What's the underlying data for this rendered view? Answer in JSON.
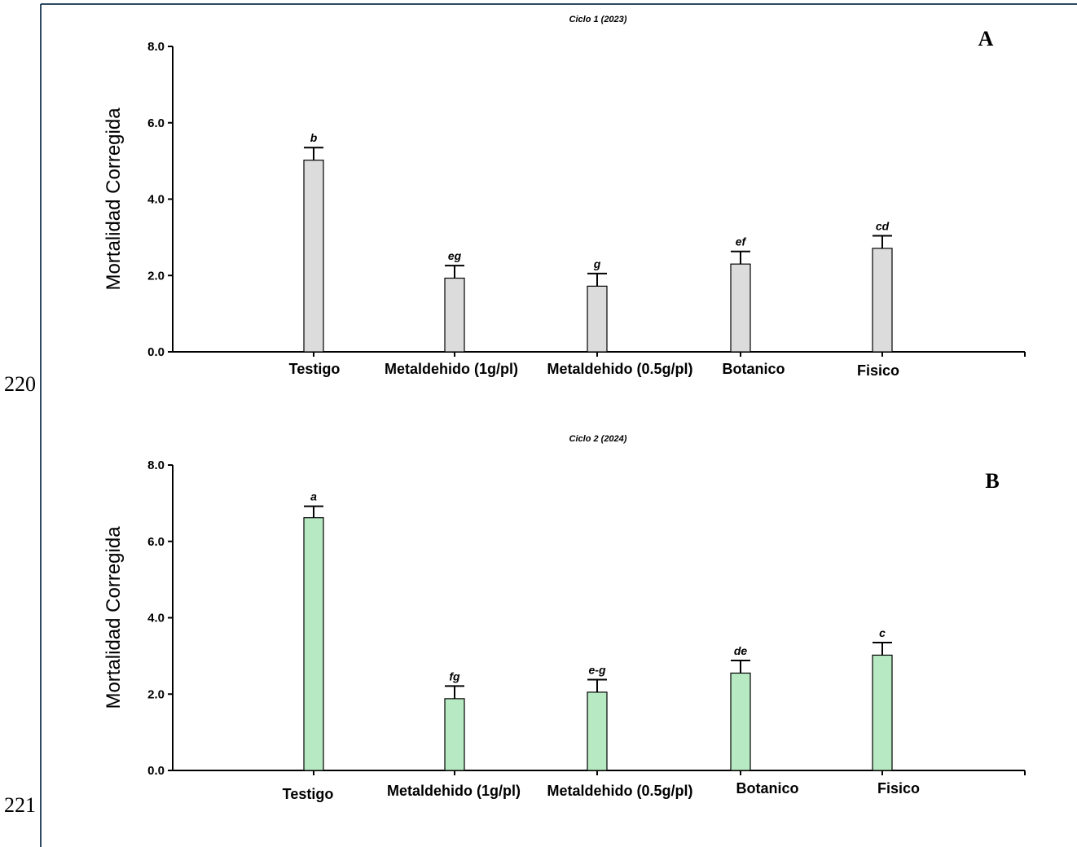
{
  "line_numbers": [
    "220",
    "221"
  ],
  "chart_data": [
    {
      "type": "bar",
      "title": "Ciclo 1 (2023)",
      "panel_label": "A",
      "xlabel": "",
      "ylabel": "Mortalidad Corregida",
      "ylim": [
        0,
        8
      ],
      "yticks": [
        "0.0",
        "2.0",
        "4.0",
        "6.0",
        "8.0"
      ],
      "categories": [
        "Testigo",
        "Metaldehido (1g/pl)",
        "Metaldehido (0.5g/pl)",
        "Botanico",
        "Fisico"
      ],
      "values": [
        5.02,
        1.93,
        1.72,
        2.3,
        2.71
      ],
      "errors": [
        0.33,
        0.33,
        0.33,
        0.33,
        0.33
      ],
      "significance": [
        "b",
        "eg",
        "g",
        "ef",
        "cd"
      ],
      "bar_color": "#dcdcdc",
      "grid": false,
      "legend": "none"
    },
    {
      "type": "bar",
      "title": "Ciclo 2 (2024)",
      "panel_label": "B",
      "xlabel": "",
      "ylabel": "Mortalidad Corregida",
      "ylim": [
        0,
        8
      ],
      "yticks": [
        "0.0",
        "2.0",
        "4.0",
        "6.0",
        "8.0"
      ],
      "categories": [
        "Testigo",
        "Metaldehido (1g/pl)",
        "Metaldehido (0.5g/pl)",
        "Botanico",
        "Fisico"
      ],
      "values": [
        6.62,
        1.88,
        2.05,
        2.55,
        3.02
      ],
      "errors": [
        0.3,
        0.33,
        0.33,
        0.33,
        0.33
      ],
      "significance": [
        "a",
        "fg",
        "e-g",
        "de",
        "c"
      ],
      "bar_color": "#b7eac2",
      "grid": false,
      "legend": "none"
    }
  ],
  "colors": {
    "frame": "#2e4a62",
    "axis": "#000000"
  }
}
